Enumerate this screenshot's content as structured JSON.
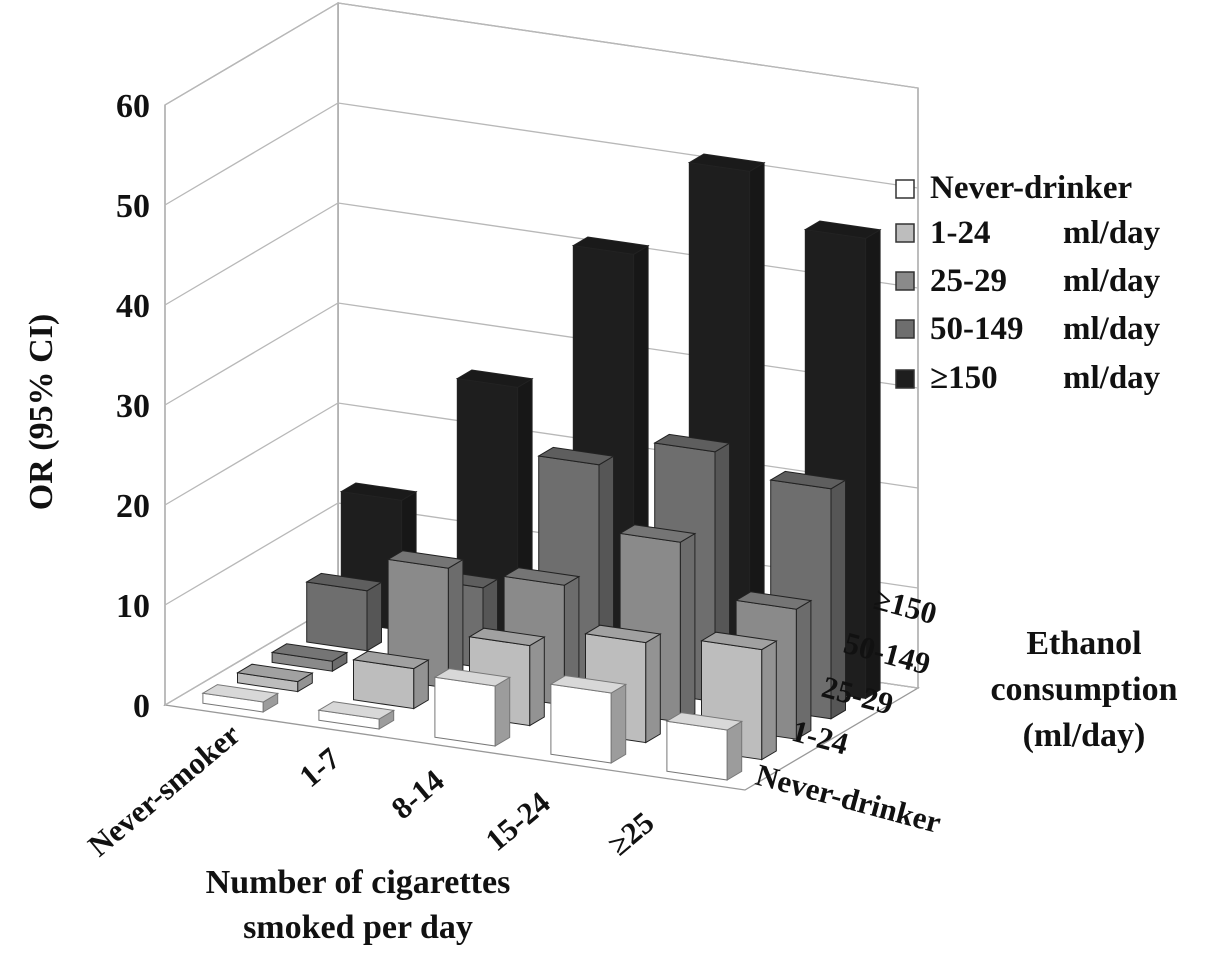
{
  "chart_data": {
    "type": "bar3d",
    "ylabel": "OR (95% CI)",
    "xlabel": [
      "Number of cigarettes",
      "smoked per day"
    ],
    "zlabel": [
      "Ethanol",
      "consumption",
      "(ml/day)"
    ],
    "ylim": [
      0,
      60
    ],
    "yticks": [
      0,
      10,
      20,
      30,
      40,
      50,
      60
    ],
    "categories": [
      "Never-smoker",
      "1-7",
      "8-14",
      "15-24",
      "≥25"
    ],
    "depth_categories": [
      "Never-drinker",
      "1-24",
      "25-29",
      "50-149",
      "≥150"
    ],
    "legend": [
      "Never-drinker",
      "1-24",
      "25-29",
      "50-149",
      "≥150"
    ],
    "legend_units": [
      "",
      "ml/day",
      "ml/day",
      "ml/day",
      "ml/day"
    ],
    "series": [
      {
        "name": "Never-drinker",
        "color": "#ffffff",
        "values": [
          1,
          1,
          6,
          7,
          5
        ]
      },
      {
        "name": "1-24",
        "color": "#bdbdbd",
        "values": [
          1,
          4,
          8,
          10,
          11
        ]
      },
      {
        "name": "25-29",
        "color": "#8a8a8a",
        "values": [
          1,
          12,
          12,
          18,
          13
        ]
      },
      {
        "name": "50-149",
        "color": "#6e6e6e",
        "values": [
          6,
          8,
          22,
          25,
          23
        ]
      },
      {
        "name": "≥150",
        "color": "#1e1e1e",
        "values": [
          13,
          26,
          41,
          51,
          46
        ]
      }
    ],
    "grid": true,
    "legend_position": "right"
  }
}
